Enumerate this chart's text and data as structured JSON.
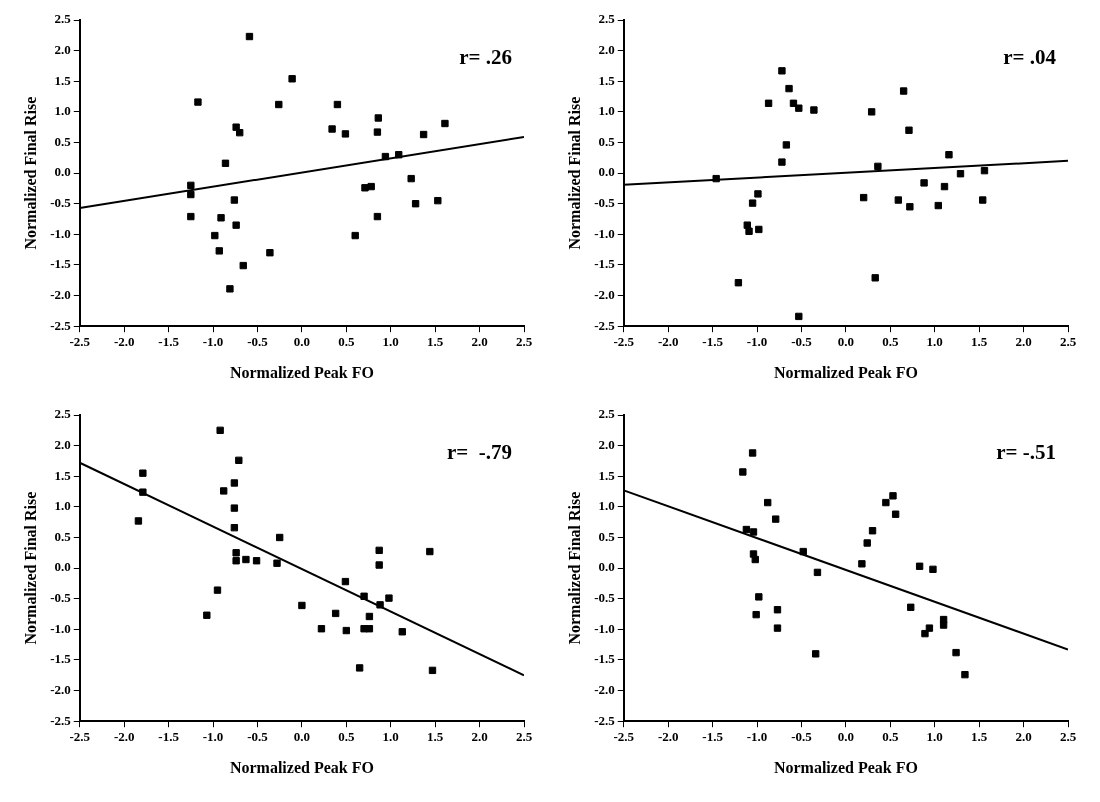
{
  "chart_data": [
    {
      "type": "scatter",
      "xlabel": "Normalized Peak FO",
      "ylabel": "Normalized Final Rise",
      "annotations": [
        "r= .26"
      ],
      "grid": false,
      "legend": false,
      "marker": "square",
      "xlim": [
        -2.5,
        2.5
      ],
      "ylim": [
        -2.5,
        2.5
      ],
      "xticks": [
        {
          "value": -2.5,
          "label": "-2.5"
        },
        {
          "value": -2,
          "label": "-2.0"
        },
        {
          "value": -1.5,
          "label": "-1.5"
        },
        {
          "value": -1,
          "label": "-1.0"
        },
        {
          "value": -0.5,
          "label": "-0.5"
        },
        {
          "value": 0,
          "label": "0.0"
        },
        {
          "value": 0.5,
          "label": "0.5"
        },
        {
          "value": 1,
          "label": "1.0"
        },
        {
          "value": 1.5,
          "label": "1.5"
        },
        {
          "value": 2,
          "label": "2.0"
        },
        {
          "value": 2.5,
          "label": "2.5"
        }
      ],
      "yticks": [
        {
          "value": -2.5,
          "label": "-2.5"
        },
        {
          "value": -2,
          "label": "-2.0"
        },
        {
          "value": -1.5,
          "label": "-1.5"
        },
        {
          "value": -1,
          "label": "-1.0"
        },
        {
          "value": -0.5,
          "label": "-0.5"
        },
        {
          "value": 0,
          "label": "0.0"
        },
        {
          "value": 0.5,
          "label": "0.5"
        },
        {
          "value": 1,
          "label": "1.0"
        },
        {
          "value": 1.5,
          "label": "1.5"
        },
        {
          "value": 2,
          "label": "2.0"
        },
        {
          "value": 2.5,
          "label": "2.5"
        }
      ],
      "series": [
        {
          "color": "#000000",
          "x": [
            -1.25,
            -1.25,
            -1.25,
            -1.17,
            -0.98,
            -0.93,
            -0.91,
            -0.86,
            -0.81,
            -0.76,
            -0.74,
            -0.7,
            -0.74,
            -0.66,
            -0.59,
            -0.36,
            -0.26,
            -0.11,
            0.34,
            0.4,
            0.49,
            0.6,
            0.71,
            0.78,
            0.85,
            0.85,
            0.86,
            0.94,
            1.09,
            1.23,
            1.28,
            1.37,
            1.53,
            1.61
          ],
          "values": [
            -0.2,
            -0.35,
            -0.71,
            1.16,
            -1.02,
            -1.27,
            -0.73,
            0.16,
            -1.89,
            -0.44,
            0.75,
            0.66,
            -0.85,
            -1.51,
            2.23,
            -1.3,
            1.12,
            1.54,
            0.72,
            1.12,
            0.64,
            -1.02,
            -0.24,
            -0.22,
            -0.71,
            0.67,
            0.9,
            0.27,
            0.3,
            -0.09,
            -0.5,
            0.63,
            -0.45,
            0.81
          ]
        },
        {
          "type": "line",
          "marker": "none",
          "color": "#000000",
          "x": [
            -2.5,
            2.5
          ],
          "values": [
            -0.57,
            0.59
          ]
        }
      ]
    },
    {
      "type": "scatter",
      "xlabel": "Normalized Peak FO",
      "ylabel": "Normalized Final Rise",
      "annotations": [
        "r= .04"
      ],
      "grid": false,
      "legend": false,
      "marker": "square",
      "xlim": [
        -2.5,
        2.5
      ],
      "ylim": [
        -2.5,
        2.5
      ],
      "xticks": [
        {
          "value": -2.5,
          "label": "-2.5"
        },
        {
          "value": -2,
          "label": "-2.0"
        },
        {
          "value": -1.5,
          "label": "-1.5"
        },
        {
          "value": -1,
          "label": "-1.0"
        },
        {
          "value": -0.5,
          "label": "-0.5"
        },
        {
          "value": 0,
          "label": "0.0"
        },
        {
          "value": 0.5,
          "label": "0.5"
        },
        {
          "value": 1,
          "label": "1.0"
        },
        {
          "value": 1.5,
          "label": "1.5"
        },
        {
          "value": 2,
          "label": "2.0"
        },
        {
          "value": 2.5,
          "label": "2.5"
        }
      ],
      "yticks": [
        {
          "value": -2.5,
          "label": "-2.5"
        },
        {
          "value": -2,
          "label": "-2.0"
        },
        {
          "value": -1.5,
          "label": "-1.5"
        },
        {
          "value": -1,
          "label": "-1.0"
        },
        {
          "value": -0.5,
          "label": "-0.5"
        },
        {
          "value": 0,
          "label": "0.0"
        },
        {
          "value": 0.5,
          "label": "0.5"
        },
        {
          "value": 1,
          "label": "1.0"
        },
        {
          "value": 1.5,
          "label": "1.5"
        },
        {
          "value": 2,
          "label": "2.0"
        },
        {
          "value": 2.5,
          "label": "2.5"
        }
      ],
      "series": [
        {
          "color": "#000000",
          "x": [
            -1.46,
            -1.21,
            -1.11,
            -1.09,
            -0.98,
            -1.05,
            -0.99,
            -0.87,
            -0.72,
            -0.72,
            -0.67,
            -0.64,
            -0.59,
            -0.53,
            -0.53,
            -0.36,
            0.2,
            0.29,
            0.33,
            0.36,
            0.59,
            0.65,
            0.71,
            0.72,
            0.88,
            1.04,
            1.11,
            1.16,
            1.29,
            1.54,
            1.56
          ],
          "values": [
            -0.09,
            -1.79,
            -0.85,
            -0.95,
            -0.92,
            -0.49,
            -0.34,
            1.14,
            1.67,
            0.18,
            0.46,
            1.38,
            1.14,
            1.06,
            -2.34,
            1.03,
            -0.4,
            1.0,
            -1.71,
            0.11,
            -0.44,
            1.34,
            0.7,
            -0.55,
            -0.16,
            -0.53,
            -0.22,
            0.3,
            -0.01,
            -0.44,
            0.04
          ]
        },
        {
          "type": "line",
          "marker": "none",
          "color": "#000000",
          "x": [
            -2.5,
            2.5
          ],
          "values": [
            -0.19,
            0.2
          ]
        }
      ]
    },
    {
      "type": "scatter",
      "xlabel": "Normalized Peak FO",
      "ylabel": "Normalized Final Rise",
      "annotations": [
        "r=  -.79"
      ],
      "grid": false,
      "legend": false,
      "marker": "square",
      "xlim": [
        -2.5,
        2.5
      ],
      "ylim": [
        -2.5,
        2.5
      ],
      "xticks": [
        {
          "value": -2.5,
          "label": "-2.5"
        },
        {
          "value": -2,
          "label": "-2.0"
        },
        {
          "value": -1.5,
          "label": "-1.5"
        },
        {
          "value": -1,
          "label": "-1.0"
        },
        {
          "value": -0.5,
          "label": "-0.5"
        },
        {
          "value": 0,
          "label": "0.0"
        },
        {
          "value": 0.5,
          "label": "0.5"
        },
        {
          "value": 1,
          "label": "1.0"
        },
        {
          "value": 1.5,
          "label": "1.5"
        },
        {
          "value": 2,
          "label": "2.0"
        },
        {
          "value": 2.5,
          "label": "2.5"
        }
      ],
      "yticks": [
        {
          "value": -2.5,
          "label": "-2.5"
        },
        {
          "value": -2,
          "label": "-2.0"
        },
        {
          "value": -1.5,
          "label": "-1.5"
        },
        {
          "value": -1,
          "label": "-1.0"
        },
        {
          "value": -0.5,
          "label": "-0.5"
        },
        {
          "value": 0,
          "label": "0.0"
        },
        {
          "value": 0.5,
          "label": "0.5"
        },
        {
          "value": 1,
          "label": "1.0"
        },
        {
          "value": 1.5,
          "label": "1.5"
        },
        {
          "value": 2,
          "label": "2.0"
        },
        {
          "value": 2.5,
          "label": "2.5"
        }
      ],
      "series": [
        {
          "color": "#000000",
          "x": [
            -1.84,
            -1.79,
            -1.79,
            -1.07,
            -0.95,
            -0.92,
            -0.88,
            -0.76,
            -0.76,
            -0.76,
            -0.71,
            -0.74,
            -0.74,
            -0.63,
            -0.51,
            -0.28,
            -0.25,
            0.0,
            0.22,
            0.38,
            0.49,
            0.5,
            0.65,
            0.7,
            0.7,
            0.76,
            0.76,
            0.87,
            0.87,
            0.88,
            0.98,
            1.13,
            1.44,
            1.47
          ],
          "values": [
            0.77,
            1.55,
            1.24,
            -0.77,
            -0.36,
            2.25,
            1.26,
            1.39,
            0.98,
            0.66,
            1.76,
            0.25,
            0.12,
            0.14,
            0.12,
            0.08,
            0.5,
            -0.61,
            -0.99,
            -0.74,
            -0.22,
            -1.02,
            -1.63,
            -0.46,
            -0.99,
            -0.99,
            -0.79,
            0.29,
            0.05,
            -0.6,
            -0.49,
            -1.04,
            0.27,
            -1.67
          ]
        },
        {
          "type": "line",
          "marker": "none",
          "color": "#000000",
          "x": [
            -2.5,
            2.5
          ],
          "values": [
            1.72,
            -1.75
          ]
        }
      ]
    },
    {
      "type": "scatter",
      "xlabel": "Normalized Peak FO",
      "ylabel": "Normalized Final Rise",
      "annotations": [
        "r= -.51"
      ],
      "grid": false,
      "legend": false,
      "marker": "square",
      "xlim": [
        -2.5,
        2.5
      ],
      "ylim": [
        -2.5,
        2.5
      ],
      "xticks": [
        {
          "value": -2.5,
          "label": "-2.5"
        },
        {
          "value": -2,
          "label": "-2.0"
        },
        {
          "value": -1.5,
          "label": "-1.5"
        },
        {
          "value": -1,
          "label": "-1.0"
        },
        {
          "value": -0.5,
          "label": "-0.5"
        },
        {
          "value": 0,
          "label": "0.0"
        },
        {
          "value": 0.5,
          "label": "0.5"
        },
        {
          "value": 1,
          "label": "1.0"
        },
        {
          "value": 1.5,
          "label": "1.5"
        },
        {
          "value": 2,
          "label": "2.0"
        },
        {
          "value": 2.5,
          "label": "2.5"
        }
      ],
      "yticks": [
        {
          "value": -2.5,
          "label": "-2.5"
        },
        {
          "value": -2,
          "label": "-2.0"
        },
        {
          "value": -1.5,
          "label": "-1.5"
        },
        {
          "value": -1,
          "label": "-1.0"
        },
        {
          "value": -0.5,
          "label": "-0.5"
        },
        {
          "value": 0,
          "label": "0.0"
        },
        {
          "value": 0.5,
          "label": "0.5"
        },
        {
          "value": 1,
          "label": "1.0"
        },
        {
          "value": 1.5,
          "label": "1.5"
        },
        {
          "value": 2,
          "label": "2.0"
        },
        {
          "value": 2.5,
          "label": "2.5"
        }
      ],
      "series": [
        {
          "color": "#000000",
          "x": [
            -1.16,
            -1.05,
            -1.12,
            -1.04,
            -1.04,
            -1.02,
            -0.98,
            -1.01,
            -0.88,
            -0.79,
            -0.77,
            -0.77,
            -0.48,
            -0.32,
            -0.34,
            0.18,
            0.24,
            0.3,
            0.45,
            0.53,
            0.56,
            0.73,
            0.83,
            0.98,
            0.89,
            0.94,
            1.1,
            1.1,
            1.24,
            1.34
          ],
          "values": [
            1.57,
            1.88,
            0.63,
            0.59,
            0.23,
            0.14,
            -0.47,
            -0.76,
            1.07,
            0.8,
            -0.68,
            -0.98,
            0.27,
            -0.07,
            -1.4,
            0.07,
            0.41,
            0.61,
            1.07,
            1.18,
            0.88,
            -0.64,
            0.03,
            -0.02,
            -1.07,
            -0.98,
            -0.84,
            -0.93,
            -1.38,
            -1.74
          ]
        },
        {
          "type": "line",
          "marker": "none",
          "color": "#000000",
          "x": [
            -2.5,
            2.5
          ],
          "values": [
            1.27,
            -1.33
          ]
        }
      ]
    }
  ]
}
